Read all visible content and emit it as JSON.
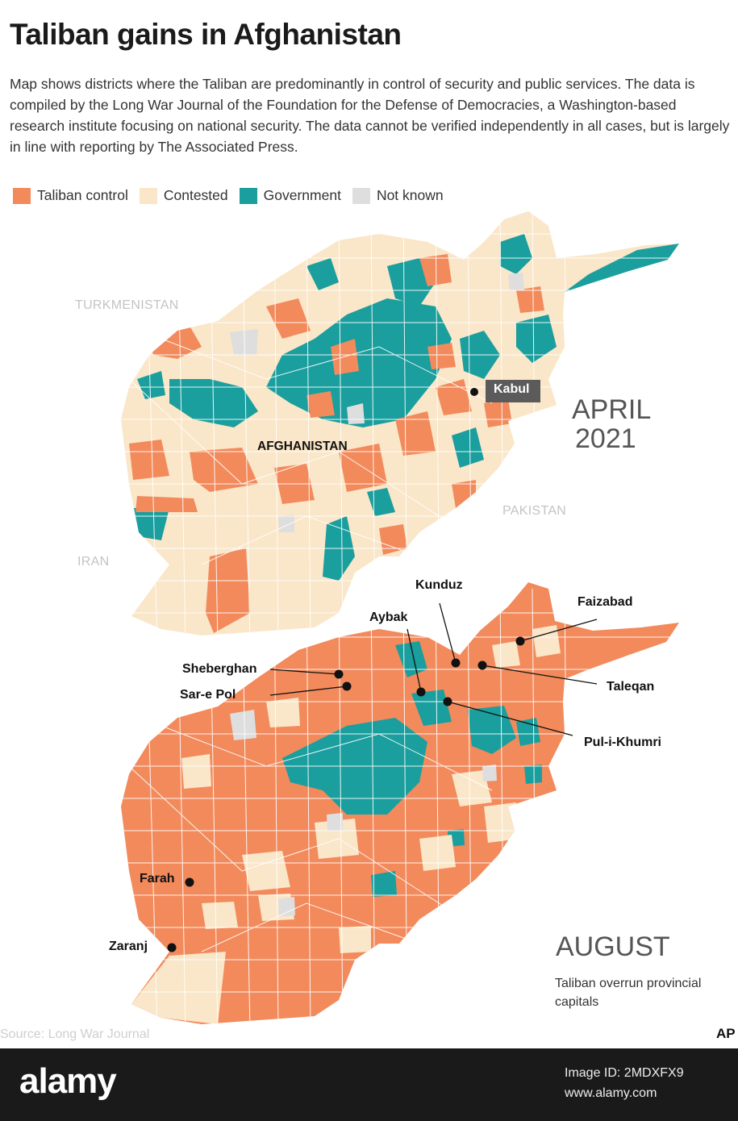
{
  "title": "Taliban gains in Afghanistan",
  "description": "Map shows districts where the Taliban are predominantly in control of security and public services. The data is compiled by the Long War Journal of the Foundation for the Defense of Democracies, a Washington-based research institute focusing on national security. The data cannot be verified independently in all cases, but is largely in line with reporting by The Associated Press.",
  "legend": [
    {
      "label": "Taliban control",
      "color": "#f28a5c"
    },
    {
      "label": "Contested",
      "color": "#fae6c8"
    },
    {
      "label": "Government",
      "color": "#1a9e9e"
    },
    {
      "label": "Not known",
      "color": "#dedede"
    }
  ],
  "map_april": {
    "neighbors": {
      "turkmenistan": "TURKMENISTAN",
      "iran": "IRAN",
      "pakistan": "PAKISTAN"
    },
    "country": "AFGHANISTAN",
    "capital": "Kabul",
    "date_line1": "APRIL",
    "date_line2": "2021"
  },
  "map_august": {
    "date": "AUGUST",
    "subtitle": "Taliban overrun provincial capitals",
    "cities": {
      "kunduz": "Kunduz",
      "faizabad": "Faizabad",
      "aybak": "Aybak",
      "sheberghan": "Sheberghan",
      "sarepol": "Sar-e Pol",
      "taleqan": "Taleqan",
      "pulikhumri": "Pul-i-Khumri",
      "farah": "Farah",
      "zaranj": "Zaranj"
    }
  },
  "source": "Source: Long War Journal",
  "agency": "AP",
  "watermark": {
    "brand": "alamy",
    "image_id": "Image ID: 2MDXFX9",
    "url": "www.alamy.com"
  }
}
